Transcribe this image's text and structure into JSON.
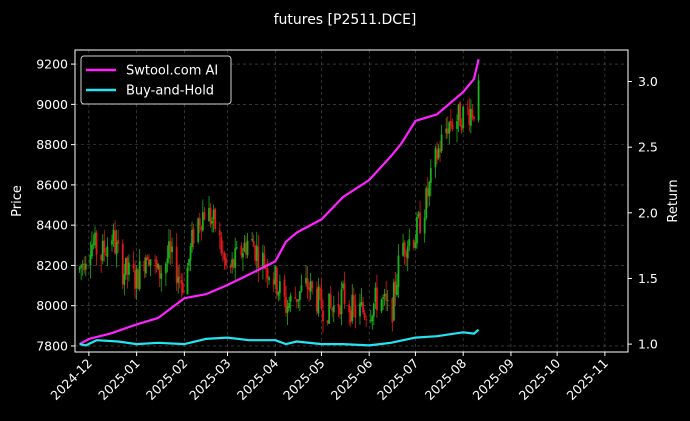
{
  "chart_data": {
    "type": "candlestick+line",
    "title": "futures [P2511.DCE]",
    "ylabel_left": "Price",
    "ylabel_right": "Return",
    "ylim_left": [
      7770,
      9270
    ],
    "ylim_right": [
      0.94,
      3.24
    ],
    "xlim": [
      "2024-11-22",
      "2025-11-16"
    ],
    "left_ticks": [
      7800,
      8000,
      8200,
      8400,
      8600,
      8800,
      9000,
      9200
    ],
    "right_ticks": [
      "1.0",
      "1.5",
      "2.0",
      "2.5",
      "3.0"
    ],
    "x_tick_dates": [
      "2024-12-01",
      "2025-01-01",
      "2025-02-01",
      "2025-03-01",
      "2025-04-01",
      "2025-05-01",
      "2025-06-01",
      "2025-07-01",
      "2025-08-01",
      "2025-09-01",
      "2025-10-01",
      "2025-11-01"
    ],
    "x_tick_labels": [
      "2024-12",
      "2025-01",
      "2025-02",
      "2025-03",
      "2025-04",
      "2025-05",
      "2025-06",
      "2025-07",
      "2025-08",
      "2025-09",
      "2025-10",
      "2025-11"
    ],
    "grid": true,
    "legend_position": "top-left",
    "colors": {
      "up": "#19b219",
      "down": "#e01a1a",
      "ai": "#ff22ff",
      "bh": "#22e4f2",
      "grid": "#555555"
    },
    "candle_start": "2024-11-25",
    "candle_end": "2025-08-11",
    "price_anchors": [
      [
        "2024-11-25",
        8180
      ],
      [
        "2024-12-02",
        8320
      ],
      [
        "2024-12-09",
        8250
      ],
      [
        "2024-12-16",
        8350
      ],
      [
        "2024-12-23",
        8180
      ],
      [
        "2025-01-01",
        8130
      ],
      [
        "2025-01-08",
        8280
      ],
      [
        "2025-01-15",
        8150
      ],
      [
        "2025-01-22",
        8250
      ],
      [
        "2025-02-01",
        8100
      ],
      [
        "2025-02-08",
        8400
      ],
      [
        "2025-02-15",
        8480
      ],
      [
        "2025-02-22",
        8380
      ],
      [
        "2025-03-01",
        8150
      ],
      [
        "2025-03-08",
        8250
      ],
      [
        "2025-03-15",
        8330
      ],
      [
        "2025-03-22",
        8250
      ],
      [
        "2025-04-01",
        8130
      ],
      [
        "2025-04-08",
        8000
      ],
      [
        "2025-04-15",
        8050
      ],
      [
        "2025-04-22",
        8100
      ],
      [
        "2025-05-01",
        8000
      ],
      [
        "2025-05-08",
        7980
      ],
      [
        "2025-05-15",
        8050
      ],
      [
        "2025-05-22",
        7970
      ],
      [
        "2025-06-01",
        7980
      ],
      [
        "2025-06-08",
        8050
      ],
      [
        "2025-06-15",
        7940
      ],
      [
        "2025-06-22",
        8300
      ],
      [
        "2025-07-01",
        8350
      ],
      [
        "2025-07-08",
        8520
      ],
      [
        "2025-07-15",
        8750
      ],
      [
        "2025-07-22",
        8900
      ],
      [
        "2025-08-01",
        8950
      ],
      [
        "2025-08-08",
        8980
      ],
      [
        "2025-08-11",
        9050
      ]
    ],
    "series": [
      {
        "name": "Swtool.com AI",
        "points": [
          [
            "2024-11-25",
            1.0
          ],
          [
            "2024-12-01",
            1.04
          ],
          [
            "2024-12-15",
            1.08
          ],
          [
            "2025-01-01",
            1.15
          ],
          [
            "2025-01-15",
            1.2
          ],
          [
            "2025-02-01",
            1.35
          ],
          [
            "2025-02-15",
            1.38
          ],
          [
            "2025-03-01",
            1.45
          ],
          [
            "2025-03-15",
            1.53
          ],
          [
            "2025-04-01",
            1.63
          ],
          [
            "2025-04-08",
            1.78
          ],
          [
            "2025-04-15",
            1.85
          ],
          [
            "2025-05-01",
            1.95
          ],
          [
            "2025-05-15",
            2.12
          ],
          [
            "2025-06-01",
            2.25
          ],
          [
            "2025-06-15",
            2.43
          ],
          [
            "2025-06-22",
            2.53
          ],
          [
            "2025-07-01",
            2.7
          ],
          [
            "2025-07-15",
            2.75
          ],
          [
            "2025-08-01",
            2.92
          ],
          [
            "2025-08-08",
            3.02
          ],
          [
            "2025-08-11",
            3.17
          ]
        ]
      },
      {
        "name": "Buy-and-Hold",
        "points": [
          [
            "2024-11-25",
            1.0
          ],
          [
            "2024-11-29",
            0.99
          ],
          [
            "2024-12-06",
            1.03
          ],
          [
            "2024-12-20",
            1.02
          ],
          [
            "2025-01-01",
            1.0
          ],
          [
            "2025-01-15",
            1.01
          ],
          [
            "2025-02-01",
            1.0
          ],
          [
            "2025-02-15",
            1.04
          ],
          [
            "2025-03-01",
            1.05
          ],
          [
            "2025-03-15",
            1.03
          ],
          [
            "2025-04-01",
            1.03
          ],
          [
            "2025-04-08",
            1.0
          ],
          [
            "2025-04-15",
            1.02
          ],
          [
            "2025-05-01",
            1.0
          ],
          [
            "2025-05-15",
            1.0
          ],
          [
            "2025-06-01",
            0.99
          ],
          [
            "2025-06-15",
            1.01
          ],
          [
            "2025-07-01",
            1.05
          ],
          [
            "2025-07-15",
            1.06
          ],
          [
            "2025-08-01",
            1.09
          ],
          [
            "2025-08-08",
            1.08
          ],
          [
            "2025-08-11",
            1.11
          ]
        ]
      }
    ]
  }
}
